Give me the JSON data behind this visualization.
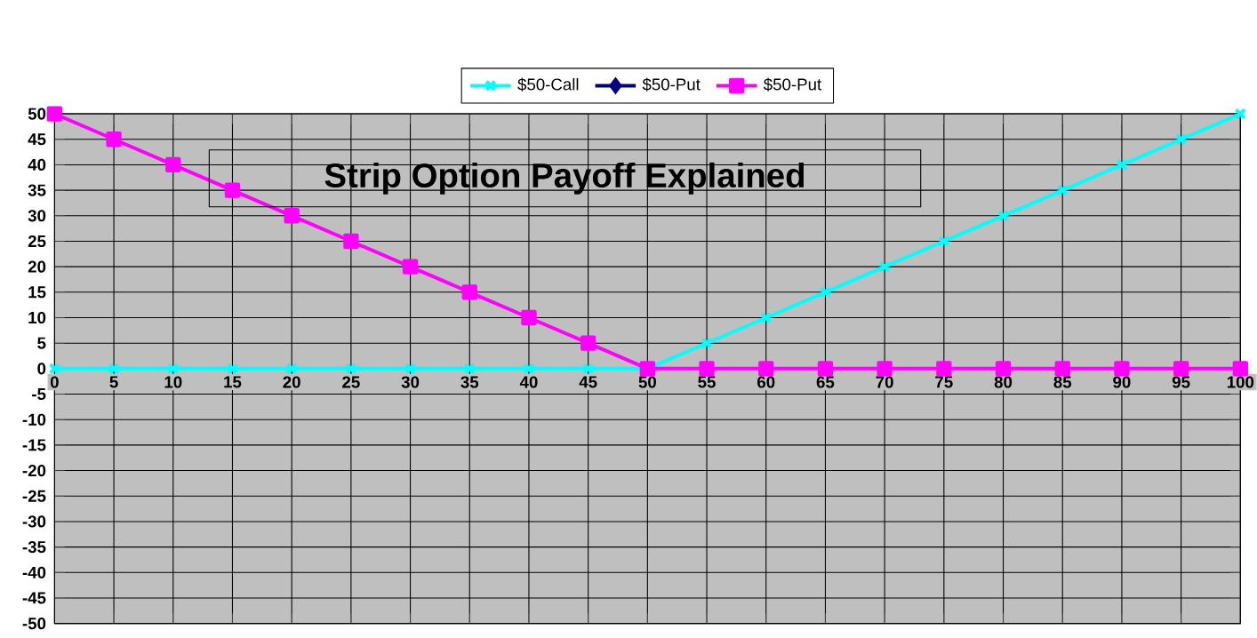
{
  "chart_data": {
    "type": "line",
    "title": "Strip Option Payoff Explained",
    "x": [
      0,
      5,
      10,
      15,
      20,
      25,
      30,
      35,
      40,
      45,
      50,
      55,
      60,
      65,
      70,
      75,
      80,
      85,
      90,
      95,
      100
    ],
    "series": [
      {
        "name": "$50-Call",
        "color": "#00ffff",
        "marker": "cross",
        "values": [
          0,
          0,
          0,
          0,
          0,
          0,
          0,
          0,
          0,
          0,
          0,
          5,
          10,
          15,
          20,
          25,
          30,
          35,
          40,
          45,
          50
        ]
      },
      {
        "name": "$50-Put",
        "color": "#000080",
        "marker": "diamond",
        "values": [
          null,
          null,
          null,
          null,
          null,
          null,
          null,
          null,
          null,
          null,
          null,
          null,
          null,
          null,
          null,
          null,
          null,
          null,
          null,
          null,
          null
        ]
      },
      {
        "name": "$50-Put",
        "color": "#ff00ff",
        "marker": "square",
        "values": [
          50,
          45,
          40,
          35,
          30,
          25,
          20,
          15,
          10,
          5,
          0,
          0,
          0,
          0,
          0,
          0,
          0,
          0,
          0,
          0,
          0
        ]
      }
    ],
    "xlim": [
      0,
      100
    ],
    "xticks": [
      0,
      5,
      10,
      15,
      20,
      25,
      30,
      35,
      40,
      45,
      50,
      55,
      60,
      65,
      70,
      75,
      80,
      85,
      90,
      95,
      100
    ],
    "ylim": [
      -50,
      50
    ],
    "yticks": [
      -50,
      -45,
      -40,
      -35,
      -30,
      -25,
      -20,
      -15,
      -10,
      -5,
      0,
      5,
      10,
      15,
      20,
      25,
      30,
      35,
      40,
      45,
      50
    ],
    "grid": true,
    "legend": "top",
    "line_style": "solid"
  }
}
